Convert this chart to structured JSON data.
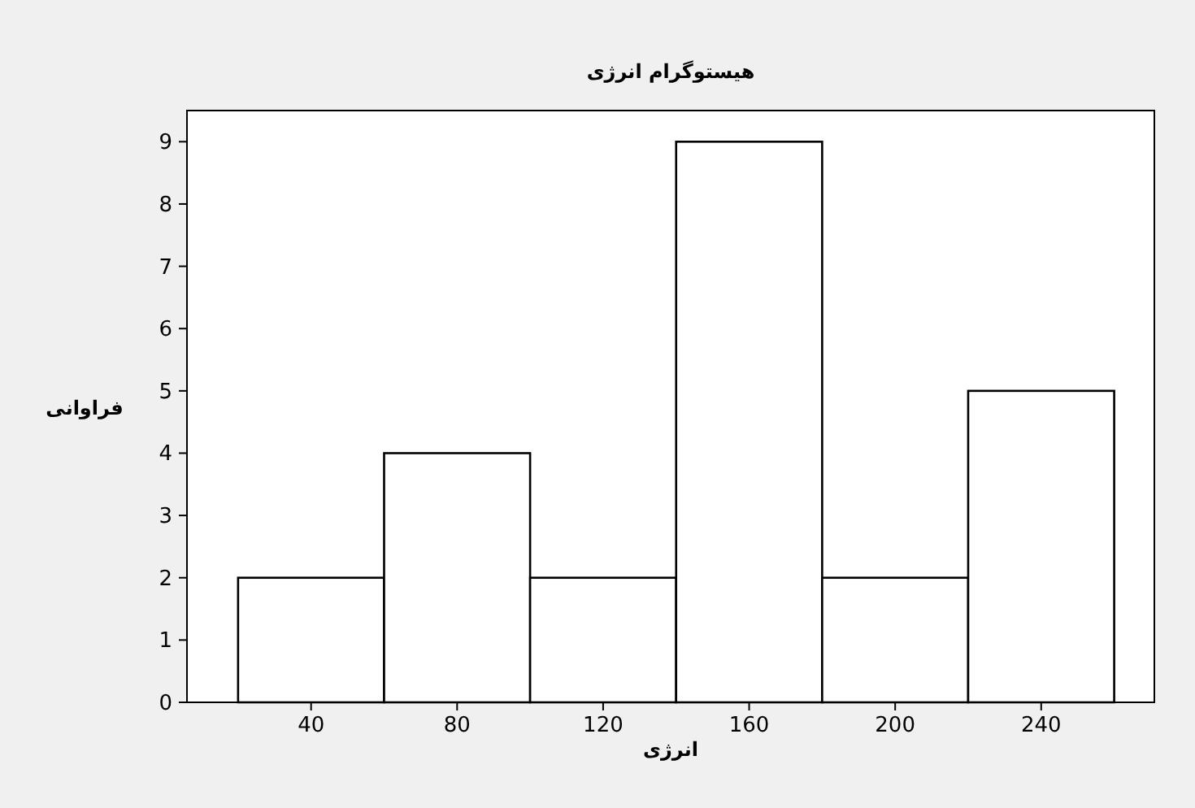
{
  "chart_data": {
    "type": "histogram",
    "title": "هیستوگرام انرژی",
    "xlabel": "انرژی",
    "ylabel": "فراوانی",
    "bins": [
      20,
      60,
      100,
      140,
      180,
      220,
      260
    ],
    "values": [
      2,
      4,
      2,
      9,
      2,
      5
    ],
    "color": "#ffffff",
    "xlim": [
      6,
      271
    ],
    "ylim": [
      0,
      9.5
    ],
    "xticks": [
      40,
      80,
      120,
      160,
      200,
      240
    ],
    "yticks": [
      0,
      1,
      2,
      3,
      4,
      5,
      6,
      7,
      8,
      9
    ],
    "grid": false
  }
}
